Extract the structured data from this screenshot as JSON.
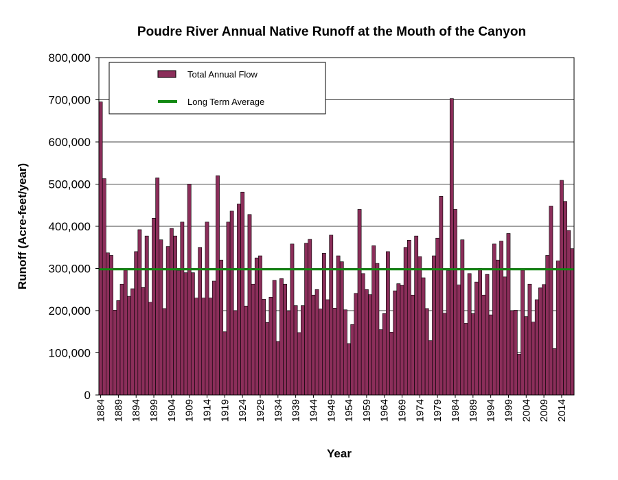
{
  "chart_data": {
    "type": "bar",
    "title": "Poudre River Annual Native Runoff at the Mouth of the Canyon",
    "xlabel": "Year",
    "ylabel": "Runoff (Acre-feet/year)",
    "ylim": [
      0,
      800000
    ],
    "yticks": [
      "0",
      "100,000",
      "200,000",
      "300,000",
      "400,000",
      "500,000",
      "600,000",
      "700,000",
      "800,000"
    ],
    "xtick_labels": [
      "1884",
      "1889",
      "1894",
      "1899",
      "1904",
      "1909",
      "1914",
      "1919",
      "1924",
      "1929",
      "1934",
      "1939",
      "1944",
      "1949",
      "1954",
      "1959",
      "1964",
      "1969",
      "1974",
      "1979",
      "1984",
      "1989",
      "1994",
      "1999",
      "2004",
      "2009",
      "2014"
    ],
    "grid": "horizontal",
    "legend_position": "top-left",
    "bar_color": "#8b2e5a",
    "average_color": "#118811",
    "series": [
      {
        "name": "Total Annual Flow",
        "start_year": 1884,
        "values": [
          695000,
          513000,
          337000,
          331000,
          201000,
          224000,
          263000,
          296000,
          234000,
          252000,
          340000,
          392000,
          255000,
          377000,
          220000,
          419000,
          515000,
          368000,
          205000,
          352000,
          395000,
          377000,
          295000,
          410000,
          290000,
          500000,
          290000,
          230000,
          350000,
          230000,
          410000,
          230000,
          270000,
          520000,
          320000,
          150000,
          410000,
          436000,
          200000,
          453000,
          481000,
          211000,
          428000,
          263000,
          325000,
          330000,
          227000,
          172000,
          232000,
          272000,
          127000,
          276000,
          263000,
          199000,
          358000,
          212000,
          148000,
          212000,
          360000,
          369000,
          237000,
          250000,
          204000,
          336000,
          226000,
          379000,
          206000,
          330000,
          316000,
          202000,
          122000,
          167000,
          241000,
          440000,
          288000,
          250000,
          238000,
          354000,
          312000,
          155000,
          193000,
          340000,
          149000,
          247000,
          264000,
          260000,
          350000,
          367000,
          237000,
          377000,
          328000,
          278000,
          205000,
          129000,
          330000,
          372000,
          471000,
          194000,
          295000,
          703000,
          440000,
          261000,
          368000,
          170000,
          288000,
          193000,
          268000,
          300000,
          237000,
          286000,
          190000,
          358000,
          320000,
          365000,
          280000,
          383000,
          200000,
          201000,
          97000,
          296000,
          186000,
          263000,
          173000,
          226000,
          254000,
          262000,
          331000,
          448000,
          110000,
          318000,
          509000,
          459000,
          390000,
          347000
        ]
      },
      {
        "name": "Long Term Average",
        "value": 298000
      }
    ]
  }
}
